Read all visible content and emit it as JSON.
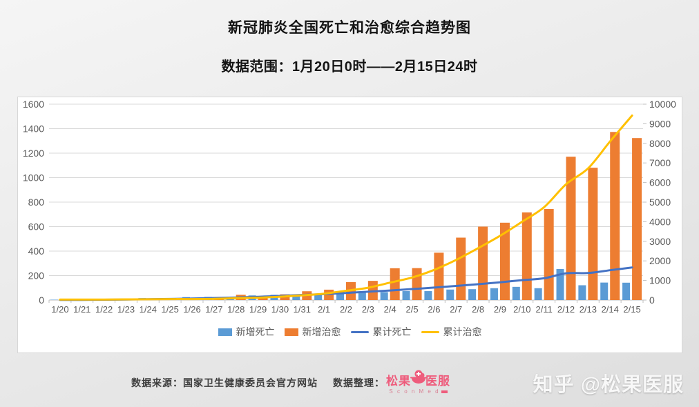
{
  "header": {
    "title": "新冠肺炎全国死亡和治愈综合趋势图",
    "subtitle": "数据范围：1月20日0时——2月15日24时"
  },
  "chart_data": {
    "type": "combo_bar_line",
    "categories": [
      "1/20",
      "1/21",
      "1/22",
      "1/23",
      "1/24",
      "1/25",
      "1/26",
      "1/27",
      "1/28",
      "1/29",
      "1/30",
      "1/31",
      "2/1",
      "2/2",
      "2/3",
      "2/4",
      "2/5",
      "2/6",
      "2/7",
      "2/8",
      "2/9",
      "2/10",
      "2/11",
      "2/12",
      "2/13",
      "2/14",
      "2/15"
    ],
    "series": [
      {
        "key": "new_deaths",
        "name": "新增死亡",
        "chart": "bar",
        "axis": "left",
        "color": "#5B9BD5",
        "values": [
          3,
          3,
          8,
          8,
          16,
          15,
          24,
          26,
          26,
          38,
          43,
          46,
          45,
          57,
          64,
          65,
          73,
          73,
          86,
          89,
          97,
          108,
          97,
          254,
          121,
          143,
          142
        ]
      },
      {
        "key": "new_cures",
        "name": "新增治愈",
        "chart": "bar",
        "axis": "left",
        "color": "#ED7D31",
        "values": [
          0,
          0,
          3,
          6,
          4,
          11,
          2,
          9,
          43,
          21,
          47,
          72,
          85,
          147,
          157,
          260,
          261,
          387,
          510,
          600,
          632,
          716,
          744,
          1171,
          1081,
          1373,
          1323
        ]
      },
      {
        "key": "cum_deaths",
        "name": "累计死亡",
        "chart": "line",
        "axis": "right",
        "color": "#4472C4",
        "values": [
          6,
          9,
          17,
          25,
          41,
          56,
          80,
          106,
          132,
          170,
          213,
          259,
          304,
          361,
          425,
          490,
          563,
          636,
          722,
          811,
          908,
          1016,
          1113,
          1367,
          1380,
          1523,
          1665
        ]
      },
      {
        "key": "cum_cures",
        "name": "累计治愈",
        "chart": "line",
        "axis": "right",
        "color": "#FFC000",
        "values": [
          25,
          25,
          28,
          34,
          38,
          49,
          51,
          60,
          103,
          124,
          171,
          243,
          328,
          475,
          632,
          892,
          1153,
          1540,
          2050,
          2649,
          3281,
          3996,
          4740,
          5911,
          6723,
          8096,
          9419
        ]
      }
    ],
    "left_axis": {
      "min": 0,
      "max": 1600,
      "step": 200
    },
    "right_axis": {
      "min": 0,
      "max": 10000,
      "step": 1000
    },
    "grid": "horizontal",
    "legend_position": "bottom",
    "colors": {
      "gridline": "#d9d9d9",
      "axis_line": "#bfbfbf",
      "axis_text": "#595959"
    }
  },
  "footer": {
    "source_label": "数据来源：国家卫生健康委员会官方网站",
    "organizer_label": "数据整理：",
    "brand": {
      "name_left": "松果",
      "name_right": "医服",
      "tagline": "S c o n M e d"
    }
  },
  "watermark": "知乎 @松果医服"
}
